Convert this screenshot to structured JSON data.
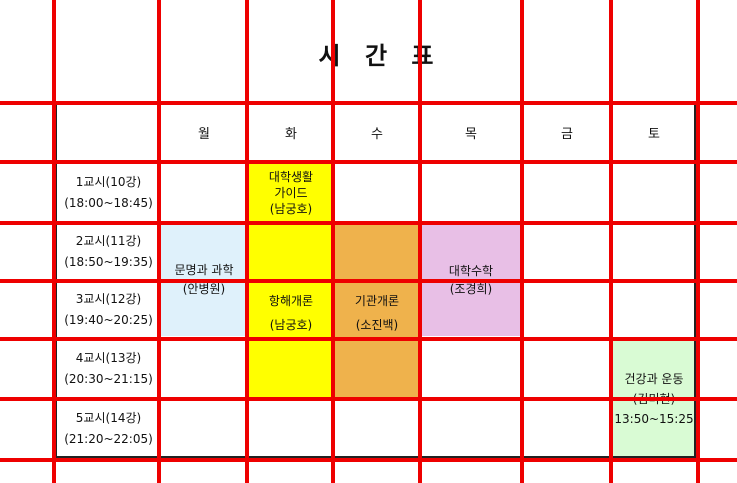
{
  "title": "시 간 표",
  "days": [
    "월",
    "화",
    "수",
    "목",
    "금",
    "토"
  ],
  "periods": [
    {
      "label": "1교시(10강)",
      "time": "(18:00~18:45)"
    },
    {
      "label": "2교시(11강)",
      "time": "(18:50~19:35)"
    },
    {
      "label": "3교시(12강)",
      "time": "(19:40~20:25)"
    },
    {
      "label": "4교시(13강)",
      "time": "(20:30~21:15)"
    },
    {
      "label": "5교시(14강)",
      "time": "(21:20~22:05)"
    }
  ],
  "courses": {
    "guide": {
      "line1": "대학생활",
      "line2": "가이드",
      "line3": "(남궁호)",
      "color": "#ffff00"
    },
    "civ": {
      "line1": "문명과 과학",
      "line2": "(안병원)",
      "color": "#dff1fb"
    },
    "nav": {
      "line1": "항해개론",
      "line2": "(남궁호)",
      "color": "#ffff00"
    },
    "eng": {
      "line1": "기관개론",
      "line2": "(소진백)",
      "color": "#efb24c"
    },
    "math": {
      "line1": "대학수학",
      "line2": "(조경희)",
      "color": "#e8bfe6"
    },
    "health": {
      "line1": "건강과 운동",
      "line2": "(김미현)",
      "line3": "13:50~15:25",
      "color": "#d9fbd4"
    }
  },
  "colors": {
    "grid": "#ee0000",
    "border": "#222222"
  }
}
